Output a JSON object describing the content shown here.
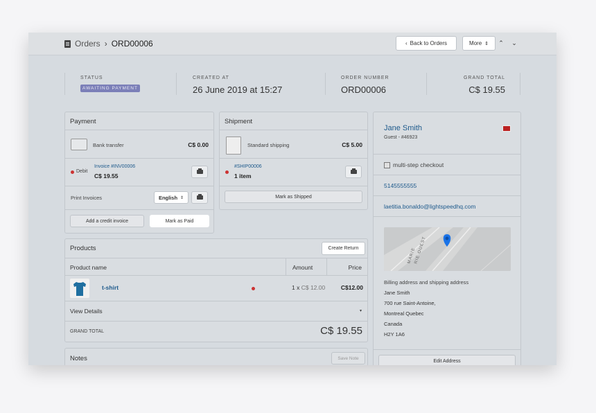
{
  "breadcrumb": {
    "parent": "Orders",
    "separator": "›",
    "current": "ORD00006"
  },
  "header": {
    "back_label": "Back to Orders",
    "back_icon": "‹",
    "more_label": "More",
    "more_icon": "⇕",
    "prev_icon": "⌃",
    "next_icon": "⌄"
  },
  "stats": {
    "status_label": "STATUS",
    "status_value": "AWAITING PAYMENT",
    "created_label": "CREATED AT",
    "created_value": "26 June 2019 at 15:27",
    "order_label": "ORDER NUMBER",
    "order_value": "ORD00006",
    "total_label": "GRAND TOTAL",
    "total_value": "C$ 19.55"
  },
  "payment": {
    "title": "Payment",
    "method": "Bank transfer",
    "method_amount": "C$ 0.00",
    "debit_label": "Debit",
    "invoice_link": "Invoice #INV00006",
    "invoice_amount": "C$ 19.55",
    "print_label": "Print Invoices",
    "language": "English",
    "credit_button": "Add a credit invoice",
    "paid_button": "Mark as Paid"
  },
  "shipment": {
    "title": "Shipment",
    "method": "Standard shipping",
    "amount": "C$ 5.00",
    "ship_link": "#SHIP00006",
    "items": "1 item",
    "shipped_button": "Mark as Shipped"
  },
  "products": {
    "title": "Products",
    "create_return": "Create Return",
    "col_name": "Product name",
    "col_amount": "Amount",
    "col_price": "Price",
    "rows": [
      {
        "name": "t-shirt",
        "qty": "1 x",
        "unit": "C$ 12.00",
        "price": "C$12.00"
      }
    ],
    "view_details": "View Details",
    "caret": "▾",
    "grand_label": "GRAND TOTAL",
    "grand_value": "C$ 19.55"
  },
  "notes": {
    "title": "Notes",
    "save": "Save Note"
  },
  "customer": {
    "name": "Jane Smith",
    "guest": "Guest - #46923",
    "checkout": "multi-step checkout",
    "phone": "5145555555",
    "email": "laetitia.bonaldo@lightspeedhq.com",
    "map_label_1": "MARIE",
    "map_label_2": "RIE OUEST",
    "addr_title": "Billing address and shipping address",
    "addr_lines": [
      "Jane Smith",
      "700 rue Saint-Antoine,",
      "Montreal Quebec",
      "Canada",
      "H2Y 1A6"
    ],
    "edit_button": "Edit Address"
  },
  "colors": {
    "accent": "#1e5a8c",
    "badge": "#7b7fb8",
    "status_dot": "#cc3333",
    "pin": "#1a73e8"
  }
}
